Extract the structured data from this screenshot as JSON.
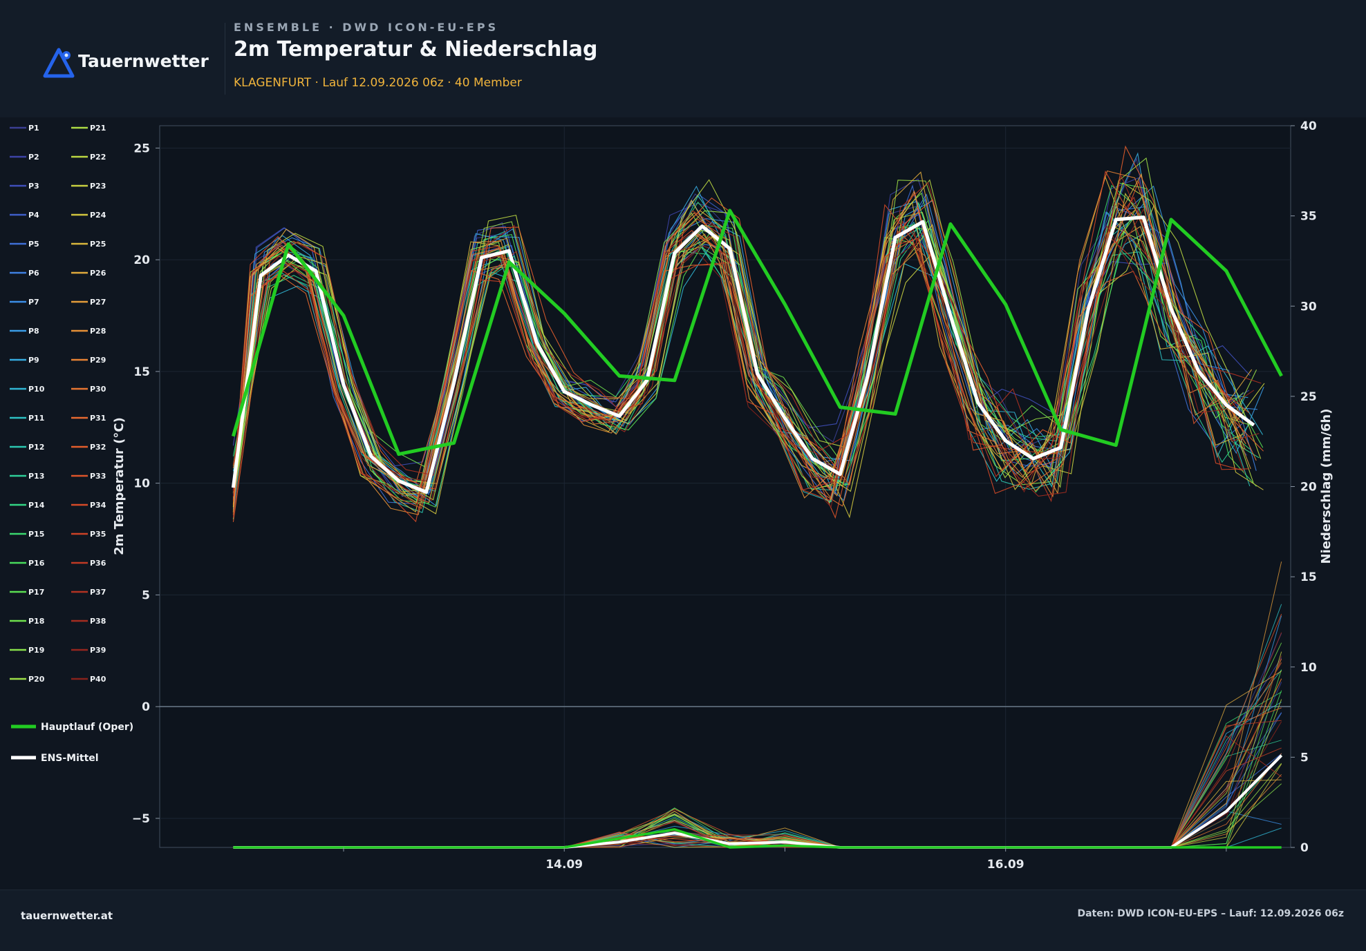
{
  "header": {
    "logo_text": "Tauernwetter",
    "kicker": "ENSEMBLE · DWD ICON-EU-EPS",
    "title": "2m Temperatur & Niederschlag",
    "subtitle": "KLAGENFURT · Lauf 12.09.2026 06z · 40 Member",
    "accent": "#f0b43c",
    "logo_color": "#2563eb"
  },
  "footer": {
    "left": "tauernwetter.at",
    "right": "Daten: DWD ICON-EU-EPS – Lauf: 12.09.2026 06z"
  },
  "chart_data": {
    "type": "line",
    "ylabel": "2m Temperatur (°C)",
    "ylabel_right": "Niederschlag (mm/6h)",
    "ylim": [
      -6.3,
      26
    ],
    "ylim_right": [
      0,
      40
    ],
    "yticks": [
      "−5",
      "0",
      "5",
      "10",
      "15",
      "20",
      "25"
    ],
    "yticks_right": [
      "0",
      "5",
      "10",
      "15",
      "20",
      "25",
      "30",
      "35",
      "40"
    ],
    "xticks": [
      "14.09",
      "16.09"
    ],
    "x_range_hours": [
      -8,
      115
    ],
    "grid": true,
    "legend": "left",
    "member_count": 40,
    "ens_mean_temperature": {
      "name": "ENS-Mittel",
      "color": "#ffffff",
      "x_hours": [
        0,
        3,
        6,
        9,
        12,
        15,
        18,
        21,
        24,
        27,
        30,
        33,
        36,
        39,
        42,
        45,
        48,
        51,
        54,
        57,
        60,
        63,
        66,
        69,
        72,
        75,
        78,
        81,
        84,
        87,
        90,
        93,
        96,
        99,
        102,
        105,
        108,
        111
      ],
      "values": [
        9.8,
        19.3,
        20.2,
        19.5,
        14.4,
        11.2,
        10.1,
        9.6,
        14.5,
        20.1,
        20.4,
        16.3,
        14.1,
        13.5,
        13.0,
        14.6,
        20.3,
        21.5,
        20.5,
        14.9,
        12.9,
        11.1,
        10.4,
        14.8,
        21.0,
        21.7,
        17.5,
        13.6,
        11.9,
        11.1,
        11.6,
        17.8,
        21.8,
        21.9,
        17.8,
        15.0,
        13.5,
        12.6
      ]
    },
    "oper_temperature": {
      "name": "Hauptlauf (Oper)",
      "color": "#22cc22",
      "x_hours": [
        0,
        6,
        12,
        18,
        24,
        30,
        36,
        42,
        48,
        54,
        60,
        66,
        72,
        78,
        84,
        90,
        96,
        102,
        108,
        114
      ],
      "values": [
        12.1,
        20.7,
        17.5,
        11.3,
        11.8,
        19.9,
        17.6,
        14.8,
        14.6,
        22.2,
        18.0,
        13.4,
        13.1,
        21.6,
        18.0,
        12.4,
        11.7,
        21.8,
        19.5,
        14.8
      ]
    },
    "ens_mean_precip": {
      "name": "ENS-Mittel",
      "x_hours": [
        0,
        6,
        12,
        18,
        24,
        30,
        36,
        42,
        48,
        54,
        60,
        66,
        72,
        78,
        84,
        90,
        96,
        102,
        108,
        114
      ],
      "values": [
        0,
        0,
        0,
        0,
        0,
        0,
        0,
        0.3,
        0.8,
        0.2,
        0.3,
        0,
        0,
        0,
        0,
        0,
        0,
        0,
        2,
        5.1
      ]
    },
    "oper_precip": {
      "name": "Hauptlauf (Oper)",
      "x_hours": [
        0,
        6,
        12,
        18,
        24,
        30,
        36,
        42,
        48,
        54,
        60,
        66,
        72,
        78,
        84,
        90,
        96,
        102,
        108,
        114
      ],
      "values": [
        0,
        0,
        0,
        0,
        0,
        0,
        0,
        0.5,
        1.0,
        0,
        0.1,
        0,
        0,
        0,
        0,
        0,
        0,
        0,
        0,
        0
      ]
    },
    "legend_items": [
      {
        "name": "P1",
        "color": "#3b3f93"
      },
      {
        "name": "P2",
        "color": "#3d43a6"
      },
      {
        "name": "P3",
        "color": "#3f4fba"
      },
      {
        "name": "P4",
        "color": "#3f5ec8"
      },
      {
        "name": "P5",
        "color": "#3f6fd6"
      },
      {
        "name": "P6",
        "color": "#3f80e0"
      },
      {
        "name": "P7",
        "color": "#3b8ee6"
      },
      {
        "name": "P8",
        "color": "#3a9ce6"
      },
      {
        "name": "P9",
        "color": "#36abe0"
      },
      {
        "name": "P10",
        "color": "#31b6d4"
      },
      {
        "name": "P11",
        "color": "#2ec1c4"
      },
      {
        "name": "P12",
        "color": "#2cc7b0"
      },
      {
        "name": "P13",
        "color": "#2ecf98"
      },
      {
        "name": "P14",
        "color": "#32d584"
      },
      {
        "name": "P15",
        "color": "#3ad76e"
      },
      {
        "name": "P16",
        "color": "#48db5c"
      },
      {
        "name": "P17",
        "color": "#5ade52"
      },
      {
        "name": "P18",
        "color": "#6fe04c"
      },
      {
        "name": "P19",
        "color": "#88e04a"
      },
      {
        "name": "P20",
        "color": "#9cde46"
      },
      {
        "name": "P21",
        "color": "#aedc44"
      },
      {
        "name": "P22",
        "color": "#bcd842"
      },
      {
        "name": "P23",
        "color": "#c8d040"
      },
      {
        "name": "P24",
        "color": "#d2c63e"
      },
      {
        "name": "P25",
        "color": "#dab83c"
      },
      {
        "name": "P26",
        "color": "#e0aa3c"
      },
      {
        "name": "P27",
        "color": "#e49c3a"
      },
      {
        "name": "P28",
        "color": "#e69036"
      },
      {
        "name": "P29",
        "color": "#e88234"
      },
      {
        "name": "P30",
        "color": "#e87632"
      },
      {
        "name": "P31",
        "color": "#e86a30"
      },
      {
        "name": "P32",
        "color": "#e45e2c"
      },
      {
        "name": "P33",
        "color": "#de542a"
      },
      {
        "name": "P34",
        "color": "#d64a28"
      },
      {
        "name": "P35",
        "color": "#cc4226"
      },
      {
        "name": "P36",
        "color": "#c03a24"
      },
      {
        "name": "P37",
        "color": "#b23222"
      },
      {
        "name": "P38",
        "color": "#a42c20"
      },
      {
        "name": "P39",
        "color": "#96261e"
      },
      {
        "name": "P40",
        "color": "#88221c"
      }
    ]
  }
}
